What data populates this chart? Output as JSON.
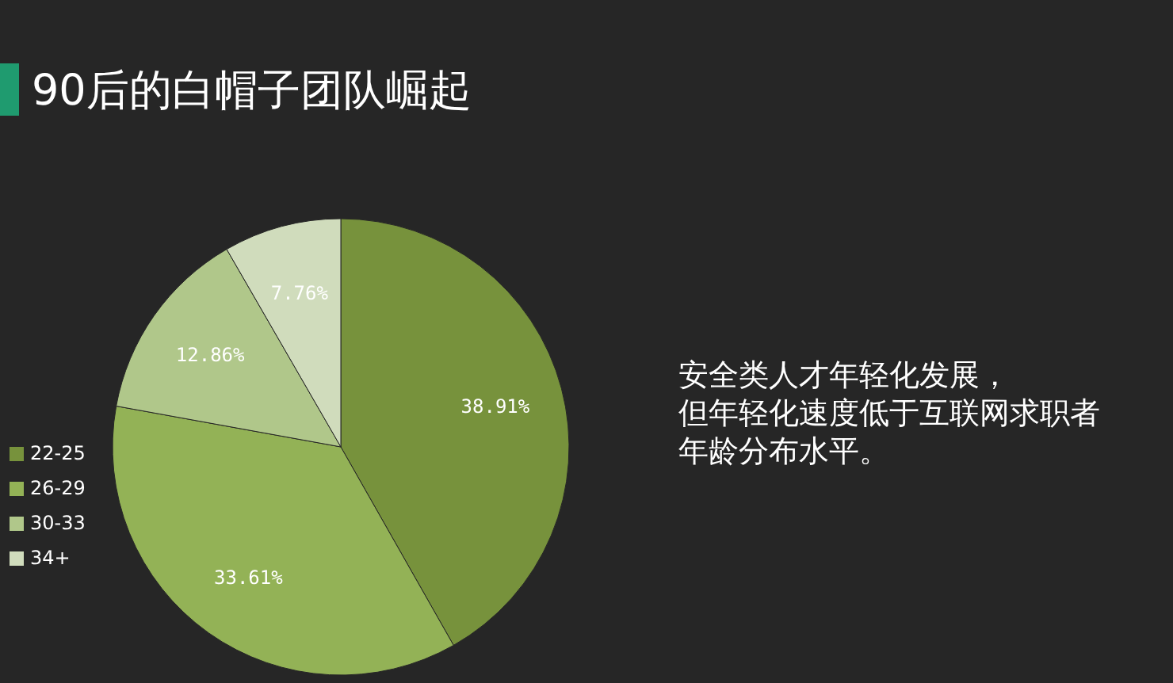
{
  "chart_data": {
    "type": "pie",
    "title": "90后的白帽子团队崛起",
    "categories": [
      "22-25",
      "26-29",
      "30-33",
      "34+"
    ],
    "values": [
      38.91,
      33.61,
      12.86,
      7.76
    ],
    "value_labels": [
      "38.91%",
      "33.61%",
      "12.86%",
      "7.76%"
    ],
    "colors": [
      "#77923c",
      "#93b256",
      "#b0c78a",
      "#d0dcbc"
    ],
    "legend": "left",
    "annotations": [
      "安全类人才年轻化发展，",
      "但年轻化速度低于互联网求职者",
      "年龄分布水平。"
    ]
  }
}
